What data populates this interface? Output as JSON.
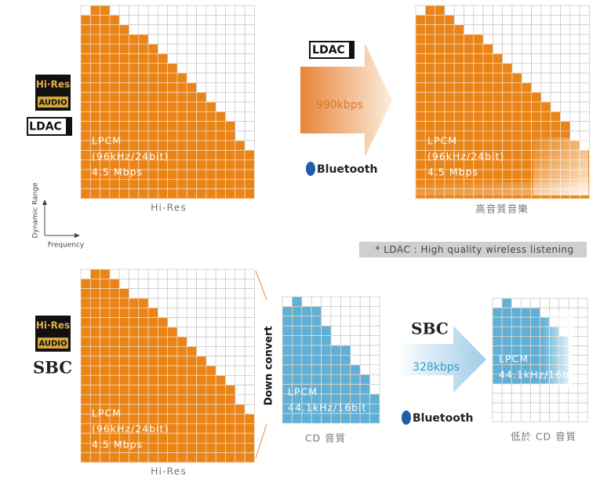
{
  "top": {
    "badges": {
      "hires": "Hi·Res",
      "audio": "AUDIO",
      "codec": "LDAC"
    },
    "source": {
      "lines": [
        "LPCM",
        "(96kHz/24bit)",
        "4.5 Mbps"
      ],
      "caption": "Hi-Res"
    },
    "axis": {
      "y": "Dynamic Range",
      "x": "Frequency"
    },
    "transfer": {
      "codec": "LDAC",
      "bitrate": "990kbps",
      "bluetooth": "Bluetooth"
    },
    "result": {
      "lines": [
        "LPCM",
        "(96kHz/24bit)",
        "4.5 Mbps"
      ],
      "caption": "高音質音樂"
    },
    "note": "* LDAC : High quality wireless listening"
  },
  "bottom": {
    "badges": {
      "hires": "Hi·Res",
      "audio": "AUDIO",
      "codec": "SBC"
    },
    "source": {
      "lines": [
        "LPCM",
        "(96kHz/24bit)",
        "4.5 Mbps"
      ],
      "caption": "Hi-Res"
    },
    "convert": "Down convert",
    "cd": {
      "lines": [
        "LPCM",
        "44.1kHz/16bit"
      ],
      "caption": "CD 音質"
    },
    "transfer": {
      "codec": "SBC",
      "bitrate": "328kbps",
      "bluetooth": "Bluetooth"
    },
    "result": {
      "lines": [
        "LPCM",
        "44.1kHz/16bit"
      ],
      "caption": "低於 CD 音質"
    }
  }
}
